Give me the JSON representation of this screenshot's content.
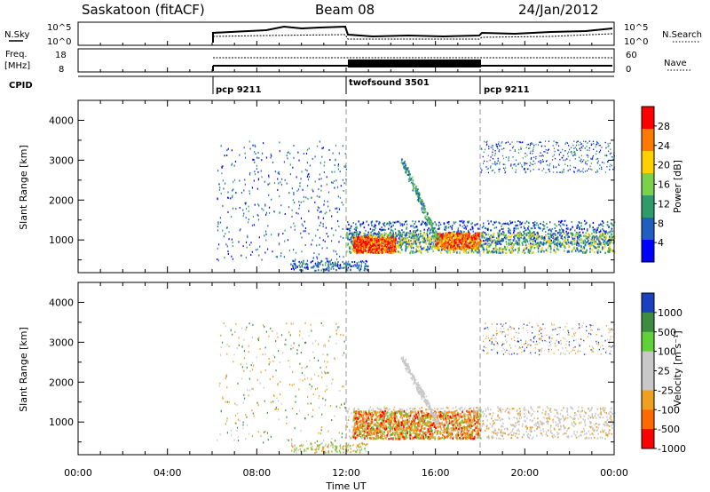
{
  "header": {
    "station": "Saskatoon (fitACF)",
    "beam": "Beam 08",
    "date": "24/Jan/2012"
  },
  "top_panels": {
    "nsky_label": "N.Sky",
    "nsky_ticks": [
      "10^5",
      "10^0"
    ],
    "nsearch_label": "N.Search",
    "freq_label_1": "Freq.",
    "freq_label_2": "[MHz]",
    "freq_ticks": [
      "18",
      "8"
    ],
    "nave_ticks": [
      "60",
      "0"
    ],
    "nave_label": "Nave",
    "cpid_label": "CPID",
    "cpid_segments": [
      {
        "label": "pcp 9211",
        "start_hour": 6
      },
      {
        "label": "twofsound 3501",
        "start_hour": 12
      },
      {
        "label": "pcp 9211",
        "start_hour": 18
      }
    ]
  },
  "panels": {
    "power": {
      "ylabel": "Slant Range [km]",
      "colorbar_label": "Power [dB]",
      "colorbar_ticks": [
        "28",
        "24",
        "20",
        "16",
        "12",
        "8",
        "4"
      ],
      "colorbar_colors": [
        "#ff0000",
        "#ff7a00",
        "#ffd000",
        "#7ad24a",
        "#2e9c6a",
        "#1f5fbf",
        "#0000ff"
      ]
    },
    "velocity": {
      "ylabel": "Slant Range [km]",
      "colorbar_label": "Velocity [m s⁻¹]",
      "colorbar_ticks": [
        "1000",
        "500",
        "100",
        "25",
        "-25",
        "-100",
        "-500",
        "-1000"
      ],
      "colorbar_colors": [
        "#1a3fbf",
        "#3d8c40",
        "#5fd23a",
        "#c8c8c8",
        "#c8c8c8",
        "#f0a020",
        "#ff6a00",
        "#ff0000"
      ]
    }
  },
  "chart_data": {
    "type": "heatmap",
    "x_label": "Time UT",
    "x_range_hours": [
      0,
      24
    ],
    "x_ticks": [
      "00:00",
      "04:00",
      "08:00",
      "12:00",
      "16:00",
      "20:00",
      "00:00"
    ],
    "y_range_km": [
      180,
      4500
    ],
    "y_ticks": [
      1000,
      2000,
      3000,
      4000
    ],
    "mode_boundaries_hours": [
      6,
      12,
      18
    ],
    "features": [
      {
        "panel": "power",
        "name": "E/F-region band",
        "hours": [
          12,
          24
        ],
        "range_km": [
          700,
          1300
        ],
        "peak_power_db": 28
      },
      {
        "panel": "power",
        "name": "near-range echoes",
        "hours": [
          9,
          13
        ],
        "range_km": [
          300,
          500
        ],
        "power_db": 8
      },
      {
        "panel": "power",
        "name": "diagonal streak",
        "hours": [
          14.5,
          16
        ],
        "range_km": [
          1000,
          3000
        ],
        "power_db": 12
      },
      {
        "panel": "power",
        "name": "sparse far-range scatter",
        "hours": [
          6,
          24
        ],
        "range_km": [
          2000,
          3600
        ],
        "power_db": 4
      },
      {
        "panel": "velocity",
        "name": "E/F-region band",
        "hours": [
          12,
          24
        ],
        "range_km": [
          600,
          1400
        ],
        "velocity_ms": -100
      },
      {
        "panel": "velocity",
        "name": "diagonal streak",
        "hours": [
          14.5,
          16
        ],
        "range_km": [
          1000,
          2600
        ],
        "velocity_ms": 25
      }
    ]
  }
}
